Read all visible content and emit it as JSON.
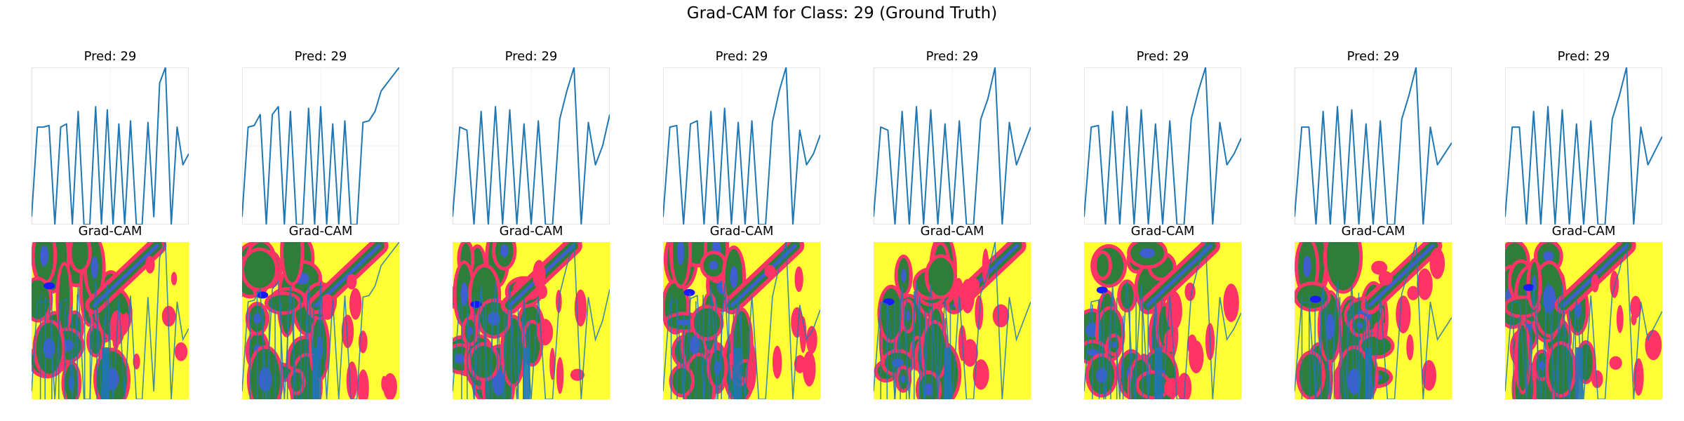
{
  "figure_title": "Grad-CAM for Class: 29 (Ground Truth)",
  "colors": {
    "line": "#1f77b4",
    "heat_bg": "#ffff33",
    "heat_band": "#ff3366",
    "heat_mid": "#2f7d3a",
    "heat_core": "#3f5fd0",
    "heat_peak": "#1a1aff",
    "frame": "#e6e6e6"
  },
  "chart_data": {
    "type": "line",
    "title": "Grad-CAM for Class: 29 (Ground Truth)",
    "grid": true,
    "axes_visible": false,
    "panels": [
      {
        "title": "Pred: 29",
        "cam_title": "Grad-CAM",
        "series": [
          0.05,
          0.62,
          0.62,
          0.63,
          0.0,
          0.62,
          0.64,
          0.0,
          0.72,
          0.0,
          0.0,
          0.75,
          0.0,
          0.73,
          0.0,
          0.64,
          0.0,
          0.66,
          0.0,
          0.0,
          0.65,
          0.05,
          0.9,
          1.0,
          0.0,
          0.62,
          0.38,
          0.45
        ]
      },
      {
        "title": "Pred: 29",
        "cam_title": "Grad-CAM",
        "series": [
          0.05,
          0.62,
          0.63,
          0.7,
          0.0,
          0.7,
          0.75,
          0.0,
          0.72,
          0.0,
          0.0,
          0.74,
          0.0,
          0.75,
          0.0,
          0.64,
          0.0,
          0.66,
          0.0,
          0.0,
          0.65,
          0.66,
          0.72,
          0.85,
          0.9,
          0.95,
          1.0
        ]
      },
      {
        "title": "Pred: 29",
        "cam_title": "Grad-CAM",
        "series": [
          0.05,
          0.62,
          0.6,
          0.0,
          0.72,
          0.0,
          0.75,
          0.0,
          0.73,
          0.0,
          0.64,
          0.0,
          0.66,
          0.0,
          0.0,
          0.67,
          0.85,
          1.0,
          0.0,
          0.65,
          0.38,
          0.5,
          0.7
        ]
      },
      {
        "title": "Pred: 29",
        "cam_title": "Grad-CAM",
        "series": [
          0.05,
          0.62,
          0.63,
          0.0,
          0.64,
          0.66,
          0.0,
          0.72,
          0.0,
          0.74,
          0.0,
          0.65,
          0.0,
          0.66,
          0.0,
          0.0,
          0.65,
          0.85,
          1.0,
          0.0,
          0.6,
          0.38,
          0.45,
          0.57
        ]
      },
      {
        "title": "Pred: 29",
        "cam_title": "Grad-CAM",
        "series": [
          0.05,
          0.62,
          0.6,
          0.0,
          0.72,
          0.0,
          0.75,
          0.0,
          0.73,
          0.0,
          0.64,
          0.0,
          0.66,
          0.0,
          0.0,
          0.67,
          0.8,
          1.0,
          0.0,
          0.65,
          0.38,
          0.5,
          0.62
        ]
      },
      {
        "title": "Pred: 29",
        "cam_title": "Grad-CAM",
        "series": [
          0.05,
          0.62,
          0.63,
          0.0,
          0.72,
          0.0,
          0.75,
          0.0,
          0.73,
          0.0,
          0.64,
          0.0,
          0.66,
          0.0,
          0.0,
          0.67,
          0.85,
          1.0,
          0.0,
          0.65,
          0.38,
          0.45,
          0.55
        ]
      },
      {
        "title": "Pred: 29",
        "cam_title": "Grad-CAM",
        "series": [
          0.05,
          0.62,
          0.62,
          0.0,
          0.72,
          0.0,
          0.75,
          0.0,
          0.73,
          0.0,
          0.64,
          0.0,
          0.66,
          0.0,
          0.0,
          0.67,
          0.82,
          1.0,
          0.0,
          0.62,
          0.38,
          0.45,
          0.52
        ]
      },
      {
        "title": "Pred: 29",
        "cam_title": "Grad-CAM",
        "series": [
          0.05,
          0.62,
          0.62,
          0.0,
          0.72,
          0.0,
          0.75,
          0.0,
          0.73,
          0.0,
          0.64,
          0.0,
          0.66,
          0.0,
          0.0,
          0.67,
          0.82,
          1.0,
          0.0,
          0.62,
          0.38,
          0.47,
          0.56
        ]
      }
    ]
  }
}
